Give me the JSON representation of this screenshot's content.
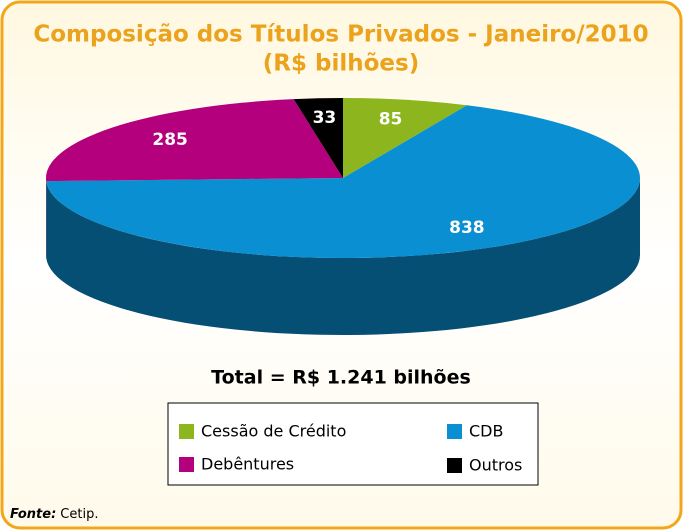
{
  "chart_data": {
    "type": "pie3d",
    "title": "Composição dos Títulos Privados - Janeiro/2010",
    "subtitle": "(R$ bilhões)",
    "categories": [
      "Cessão de Crédito",
      "CDB",
      "Debêntures",
      "Outros"
    ],
    "values": [
      85,
      838,
      285,
      33
    ],
    "colors": [
      "#8db51e",
      "#0b8fd3",
      "#b4007c",
      "#000000"
    ],
    "annotation": "Total = R$  1.241  bilhões",
    "source_label": "Fonte:",
    "source": "Cetip."
  }
}
